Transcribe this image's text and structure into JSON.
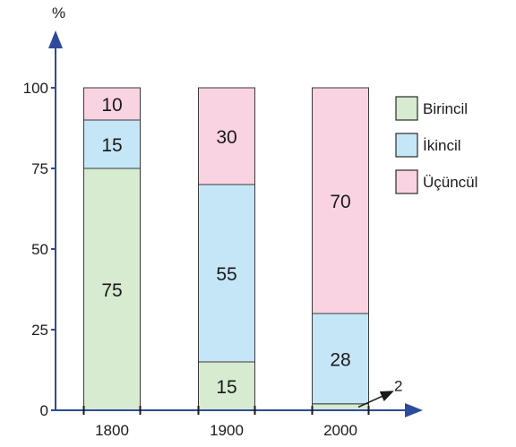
{
  "chart_data": {
    "type": "bar",
    "stacked": true,
    "categories": [
      "1800",
      "1900",
      "2000"
    ],
    "ylabel": "%",
    "ylim": [
      0,
      100
    ],
    "yticks": [
      "0",
      "25",
      "50",
      "75",
      "100"
    ],
    "series": [
      {
        "name": "Birincil",
        "values": [
          75,
          15,
          2
        ],
        "color": "#d6ebcf"
      },
      {
        "name": "İkincil",
        "values": [
          15,
          55,
          28
        ],
        "color": "#c5e6f7"
      },
      {
        "name": "Üçüncül",
        "values": [
          10,
          30,
          70
        ],
        "color": "#fad3e2"
      }
    ],
    "data_labels": [
      [
        "75",
        "15",
        "2"
      ],
      [
        "15",
        "55",
        "28"
      ],
      [
        "10",
        "30",
        "70"
      ]
    ],
    "legend_position": "right",
    "grid": false,
    "colors": {
      "axis": "#2e4a9a",
      "bar_border": "#3a3a3a"
    }
  }
}
